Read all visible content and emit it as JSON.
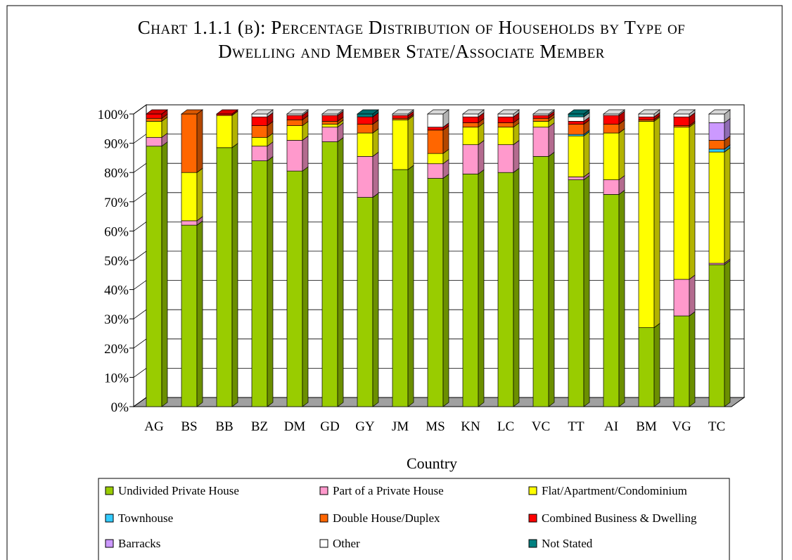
{
  "chart_data": {
    "type": "stacked_bar",
    "title": "Chart 1.1.1 (b): Percentage Distribution of Households by Type of Dwelling and Member State/Associate Member",
    "x_label": "Country",
    "categories": [
      "AG",
      "BS",
      "BB",
      "BZ",
      "DM",
      "GD",
      "GY",
      "JM",
      "MS",
      "KN",
      "LC",
      "VC",
      "TT",
      "AI",
      "BM",
      "VG",
      "TC"
    ],
    "series": [
      {
        "name": "Undivided Private House",
        "color": "#99cc00",
        "values": [
          89,
          62,
          88.5,
          84,
          80.5,
          90.5,
          71.5,
          81,
          78,
          79.5,
          80,
          85.5,
          77.5,
          72.5,
          27,
          31,
          48.5
        ]
      },
      {
        "name": "Part of a Private House",
        "color": "#ff99cc",
        "values": [
          3,
          1.5,
          0,
          5,
          10.5,
          5,
          14,
          0,
          5,
          10,
          9.5,
          10,
          1,
          5,
          0,
          12.5,
          0.5
        ]
      },
      {
        "name": "Flat/Apartment/Condominium",
        "color": "#ffff00",
        "values": [
          5.5,
          16.5,
          11,
          3,
          5,
          1,
          8,
          17,
          3.5,
          6,
          6,
          2,
          14,
          16,
          70.5,
          52,
          38
        ]
      },
      {
        "name": "Townhouse",
        "color": "#33ccff",
        "values": [
          0,
          0,
          0,
          0,
          0,
          0,
          0,
          0,
          0,
          0,
          0,
          0,
          0.5,
          0,
          0,
          0,
          1
        ]
      },
      {
        "name": "Double House/Duplex",
        "color": "#ff6600",
        "values": [
          1,
          20,
          0,
          4,
          2,
          1,
          3,
          0.5,
          8,
          1.5,
          1.5,
          1,
          3.5,
          3,
          0.5,
          0.5,
          3
        ]
      },
      {
        "name": "Combined Business & Dwelling",
        "color": "#ff0000",
        "values": [
          1.5,
          0,
          0.5,
          3,
          1.5,
          2,
          2.5,
          1,
          1,
          2,
          2,
          1,
          1,
          3,
          1,
          3,
          0
        ]
      },
      {
        "name": "Barracks",
        "color": "#cc99ff",
        "values": [
          0,
          0,
          0,
          0,
          0,
          0,
          0,
          0,
          0,
          0,
          0,
          0,
          0,
          0,
          0,
          0,
          6
        ]
      },
      {
        "name": "Other",
        "color": "#ffffff",
        "values": [
          0,
          0,
          0,
          1,
          0.5,
          0.5,
          0,
          0.5,
          4.5,
          1,
          1,
          0.5,
          1.5,
          0.5,
          1,
          1,
          3
        ]
      },
      {
        "name": "Not Stated",
        "color": "#008080",
        "values": [
          0,
          0,
          0,
          0,
          0,
          0,
          1,
          0,
          0,
          0,
          0,
          0,
          1,
          0,
          0,
          0,
          0
        ]
      }
    ],
    "ylim": [
      0,
      100
    ],
    "yticks": [
      {
        "value": 0,
        "label": "0%"
      },
      {
        "value": 10,
        "label": "10%"
      },
      {
        "value": 20,
        "label": "20%"
      },
      {
        "value": 30,
        "label": "30%"
      },
      {
        "value": 40,
        "label": "40%"
      },
      {
        "value": 50,
        "label": "50%"
      },
      {
        "value": 60,
        "label": "60%"
      },
      {
        "value": 70,
        "label": "70%"
      },
      {
        "value": 80,
        "label": "80%"
      },
      {
        "value": 90,
        "label": "90%"
      },
      {
        "value": 100,
        "label": "100%"
      }
    ],
    "grid": true,
    "legend": "bottom"
  }
}
